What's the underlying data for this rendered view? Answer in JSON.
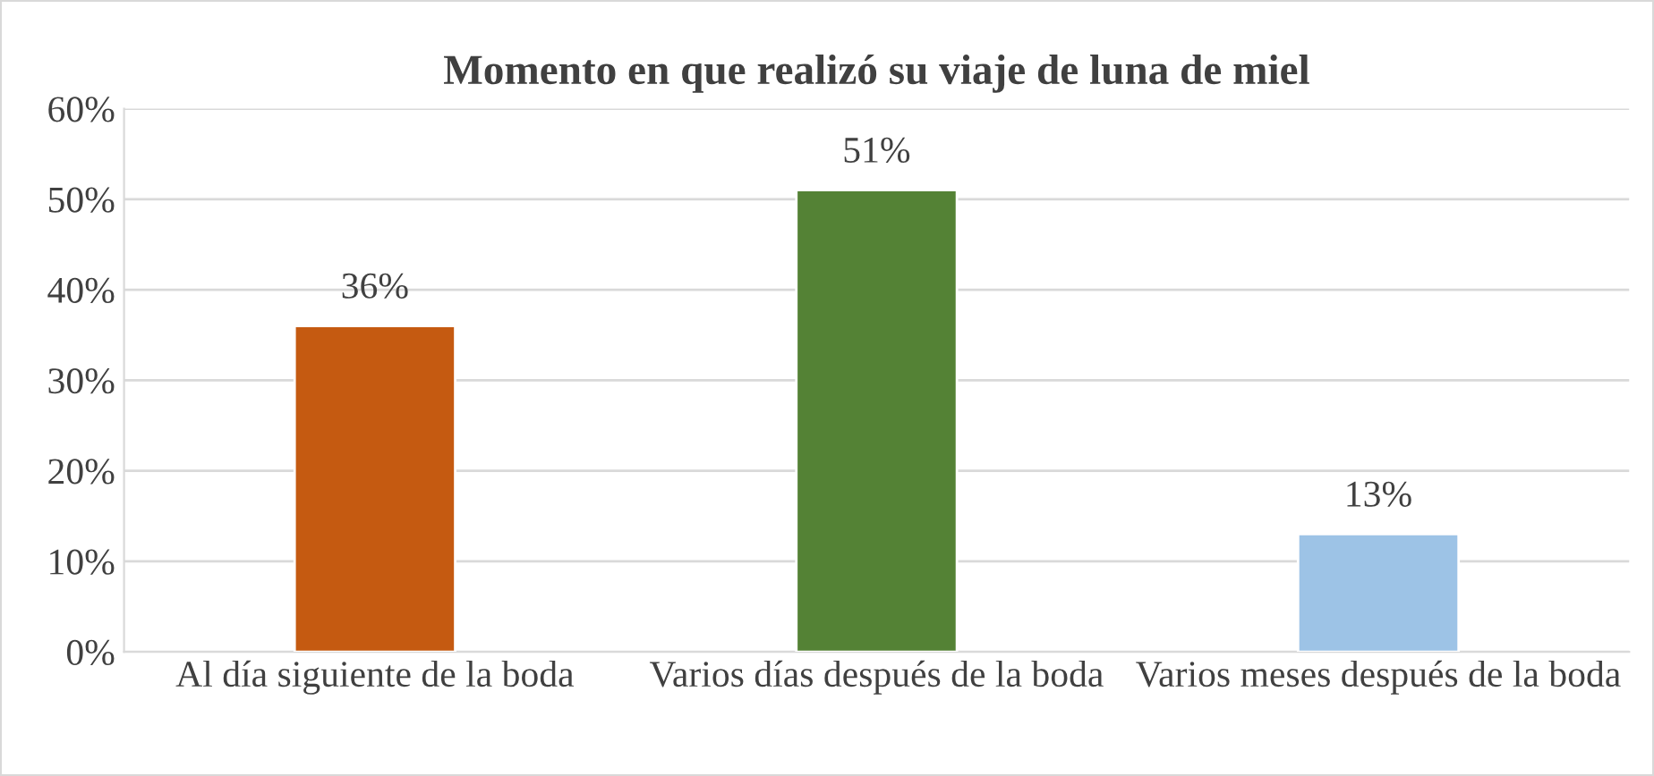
{
  "chart_data": {
    "type": "bar",
    "title": "Momento en que realizó su viaje de luna de miel",
    "categories": [
      "Al día siguiente de la boda",
      "Varios días después de la boda",
      "Varios meses después de la boda"
    ],
    "values": [
      36,
      51,
      13
    ],
    "colors": [
      "#c55a11",
      "#548235",
      "#9dc3e6"
    ],
    "value_labels": [
      "36%",
      "51%",
      "13%"
    ],
    "ylim": [
      0,
      60
    ],
    "yticks": [
      {
        "value": 0,
        "label": "0%"
      },
      {
        "value": 10,
        "label": "10%"
      },
      {
        "value": 20,
        "label": "20%"
      },
      {
        "value": 30,
        "label": "30%"
      },
      {
        "value": 40,
        "label": "40%"
      },
      {
        "value": 50,
        "label": "50%"
      },
      {
        "value": 60,
        "label": "60%"
      }
    ],
    "grid": "y",
    "legend": false
  }
}
